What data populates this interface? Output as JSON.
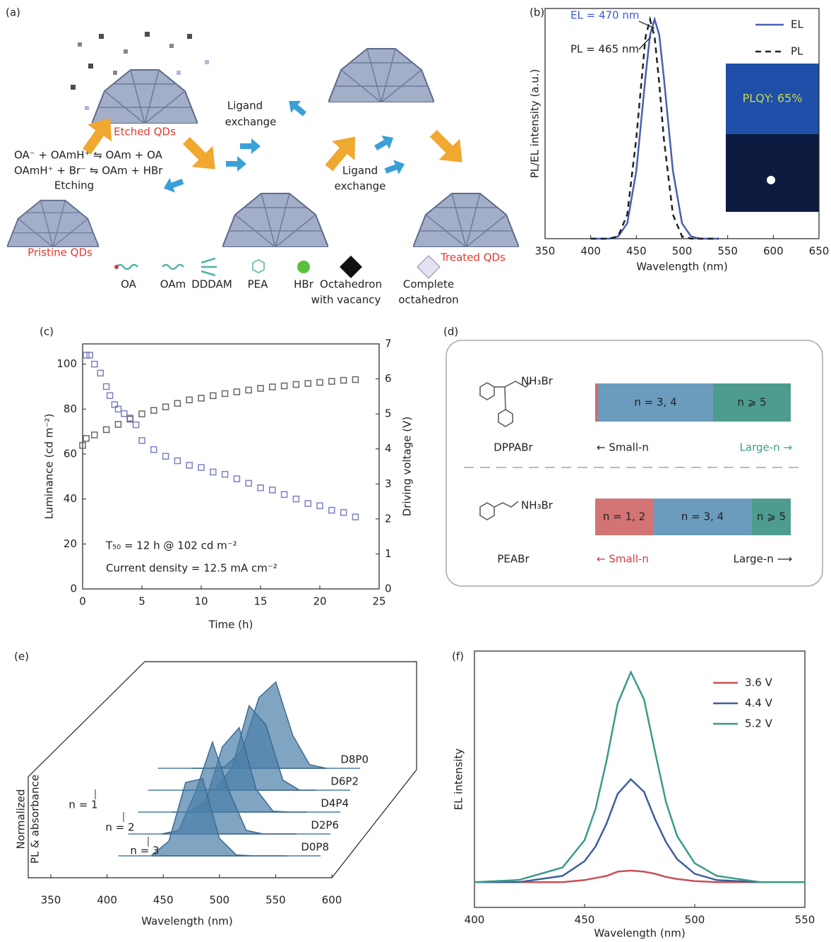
{
  "panel_a": {
    "label": "(a)",
    "etched": "Etched QDs",
    "exchange_1": [
      "Ligand",
      "exchange"
    ],
    "equations": [
      "OA⁻ + OAmH⁺ ⇋ OAm + OA",
      "OAmH⁺ + Br⁻ ⇋ OAm + HBr"
    ],
    "etching": "Etching",
    "exchange_2": [
      "Ligand",
      "exchange"
    ],
    "pristine": "Pristine QDs",
    "treated": "Treated QDs",
    "legend": [
      [
        "OA"
      ],
      [
        "OAm"
      ],
      [
        "DDDAM"
      ],
      [
        "PEA"
      ],
      [
        "HBr"
      ],
      [
        "Octahedron",
        "with vacancy"
      ],
      [
        "Complete",
        "octahedron"
      ]
    ]
  },
  "panel_d": {
    "label": "(d)",
    "rows": [
      {
        "molecule": "DPPABr",
        "group": "NH₃Br",
        "segments": [
          "n = 3, 4",
          "n ⩾ 5"
        ],
        "small": "← Small-n",
        "large": "Large-n →"
      },
      {
        "molecule": "PEABr",
        "group": "NH₃Br",
        "segments": [
          "n = 1, 2",
          "n = 3, 4",
          "n ⩾ 5"
        ],
        "small": "← Small-n",
        "large": "Large-n ⟶"
      }
    ]
  },
  "chart_data": [
    {
      "type": "line",
      "label": "(b)",
      "xlabel": "Wavelength (nm)",
      "ylabel": "PL/EL intensity (a.u.)",
      "x": [
        400,
        420,
        430,
        440,
        450,
        460,
        465,
        470,
        475,
        480,
        490,
        500,
        510,
        520,
        540
      ],
      "series": [
        {
          "name": "EL",
          "color": "#4a5fb0",
          "style": "solid",
          "values": [
            0,
            0,
            0.01,
            0.07,
            0.31,
            0.74,
            0.93,
            1,
            0.93,
            0.74,
            0.31,
            0.07,
            0.01,
            0,
            0
          ]
        },
        {
          "name": "PL",
          "color": "#222222",
          "style": "dashed",
          "values": [
            0,
            0,
            0.01,
            0.11,
            0.46,
            0.92,
            1,
            0.92,
            0.71,
            0.46,
            0.11,
            0.01,
            0,
            0,
            0
          ]
        }
      ],
      "xlim": [
        350,
        650
      ],
      "xticks": [
        350,
        400,
        450,
        500,
        550,
        600,
        650
      ],
      "ylim": [
        0,
        1.05
      ],
      "legend": "upper right",
      "annotations": [
        "EL = 470 nm",
        "PL = 465 nm"
      ],
      "inset_text": "PLQY: 65%"
    },
    {
      "type": "scatter",
      "label": "(c)",
      "xlabel": "Time (h)",
      "ylabel": "Luminance (cd m⁻²)",
      "y2label": "Driving voltage (V)",
      "series": [
        {
          "color": "#7b7fc4",
          "marker": "open-square",
          "x": [
            0.3,
            0.6,
            1,
            1.5,
            2,
            2.3,
            2.7,
            3,
            3.5,
            4,
            4.5,
            5,
            6,
            7,
            8,
            9,
            10,
            11,
            12,
            13,
            14,
            15,
            16,
            17,
            18,
            19,
            20,
            21,
            22,
            23
          ],
          "values": [
            104,
            104,
            100,
            96,
            90,
            86,
            82,
            80,
            78,
            76,
            73,
            66,
            62,
            59,
            57,
            55,
            54,
            52,
            51,
            49,
            47,
            45,
            44,
            42,
            40,
            38,
            37,
            35,
            34,
            32
          ]
        },
        {
          "color": "#666666",
          "marker": "open-square",
          "axis": "y2",
          "x": [
            0,
            0.3,
            1,
            2,
            3,
            4,
            5,
            6,
            7,
            8,
            9,
            10,
            11,
            12,
            13,
            14,
            15,
            16,
            17,
            18,
            19,
            20,
            21,
            22,
            23
          ],
          "values": [
            4.1,
            4.3,
            4.4,
            4.55,
            4.7,
            4.85,
            5.0,
            5.1,
            5.2,
            5.3,
            5.4,
            5.45,
            5.52,
            5.58,
            5.63,
            5.68,
            5.73,
            5.77,
            5.8,
            5.84,
            5.87,
            5.9,
            5.93,
            5.96,
            5.98
          ]
        }
      ],
      "xlim": [
        0,
        25
      ],
      "xticks": [
        0,
        5,
        10,
        15,
        20,
        25
      ],
      "ylim": [
        0,
        109
      ],
      "yticks": [
        0,
        20,
        40,
        60,
        80,
        100
      ],
      "y2lim": [
        0,
        7
      ],
      "y2ticks": [
        0,
        1,
        2,
        3,
        4,
        5,
        6,
        7
      ],
      "annotations": [
        "T₅₀ = 12 h @ 102 cd m⁻²",
        "Current density = 12.5 mA cm⁻²"
      ]
    },
    {
      "type": "ridgeline",
      "label": "(e)",
      "xlabel": "Wavelength (nm)",
      "ylabel": [
        "Normalized",
        "PL & absorbance"
      ],
      "x": [
        440,
        455,
        470,
        485,
        500,
        515,
        530,
        545,
        560
      ],
      "series": [
        {
          "name": "D0P8",
          "color": "#4a7fa8",
          "values": [
            0.01,
            0.16,
            0.8,
            0.84,
            0.19,
            0.01,
            0,
            0,
            0
          ]
        },
        {
          "name": "D2P6",
          "color": "#4a7fa8",
          "values": [
            0,
            0.04,
            0.46,
            1,
            0.46,
            0.04,
            0,
            0,
            0
          ]
        },
        {
          "name": "D4P4",
          "color": "#4a7fa8",
          "values": [
            0,
            0,
            0.11,
            0.71,
            0.92,
            0.25,
            0.01,
            0,
            0
          ]
        },
        {
          "name": "D6P2",
          "color": "#4a7fa8",
          "values": [
            0,
            0,
            0.01,
            0.25,
            0.92,
            0.71,
            0.11,
            0,
            0
          ]
        },
        {
          "name": "D8P0",
          "color": "#4a7fa8",
          "values": [
            0,
            0,
            0.02,
            0.2,
            0.77,
            0.94,
            0.36,
            0.04,
            0
          ]
        }
      ],
      "xlim": [
        350,
        600
      ],
      "xticks": [
        350,
        400,
        450,
        500,
        550,
        600
      ],
      "ylim": [
        0,
        1
      ],
      "annotations": [
        "n = 1",
        "n = 2",
        "n = 3"
      ]
    },
    {
      "type": "line",
      "label": "(f)",
      "xlabel": "Wavelength (nm)",
      "ylabel": "EL intensity",
      "x": [
        400,
        420,
        440,
        450,
        455,
        460,
        465,
        471,
        477,
        482,
        487,
        492,
        500,
        510,
        530,
        550
      ],
      "series": [
        {
          "name": "3.6 V",
          "color": "#c94f55",
          "style": "solid",
          "values": [
            0,
            0,
            0,
            0.01,
            0.02,
            0.03,
            0.05,
            0.055,
            0.05,
            0.04,
            0.025,
            0.015,
            0.005,
            0,
            0,
            0
          ]
        },
        {
          "name": "4.4 V",
          "color": "#3d5f9a",
          "style": "solid",
          "values": [
            0,
            0,
            0.03,
            0.1,
            0.17,
            0.28,
            0.42,
            0.49,
            0.43,
            0.3,
            0.19,
            0.11,
            0.04,
            0.01,
            0,
            0
          ]
        },
        {
          "name": "5.2 V",
          "color": "#3a9a8a",
          "style": "solid",
          "values": [
            0,
            0.01,
            0.07,
            0.2,
            0.35,
            0.58,
            0.85,
            1,
            0.87,
            0.62,
            0.38,
            0.22,
            0.09,
            0.03,
            0,
            0
          ]
        }
      ],
      "xlim": [
        400,
        550
      ],
      "xticks": [
        400,
        450,
        500,
        550
      ],
      "ylim": [
        -0.12,
        1.1
      ],
      "legend": "upper right"
    }
  ]
}
